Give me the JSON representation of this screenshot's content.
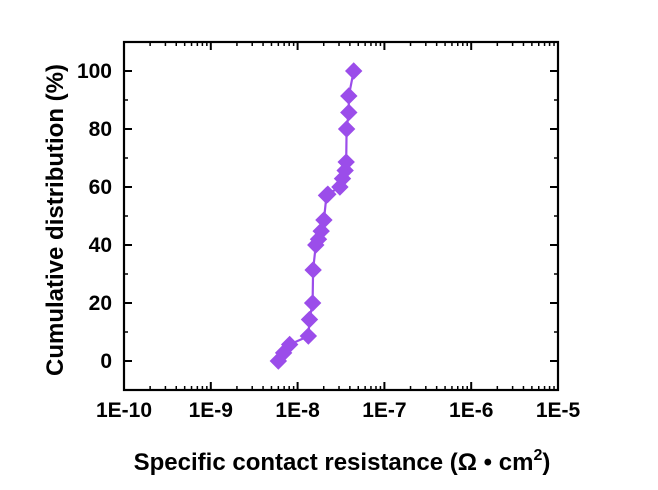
{
  "chart_data": {
    "type": "scatter",
    "title": "",
    "xlabel": "Specific contact resistance (Ω • cm",
    "xlabel_superscript": "2",
    "xlabel_close": ")",
    "ylabel": "Cumulative distribution (%)",
    "x_scale": "log",
    "xlim": [
      1e-10,
      1e-05
    ],
    "ylim": [
      -10,
      110
    ],
    "x_ticks": [
      1e-10,
      1e-09,
      1e-08,
      1e-07,
      1e-06,
      1e-05
    ],
    "x_tick_labels": [
      "1E-10",
      "1E-9",
      "1E-8",
      "1E-7",
      "1E-6",
      "1E-5"
    ],
    "y_ticks": [
      0,
      20,
      40,
      60,
      80,
      100
    ],
    "y_tick_labels": [
      "0",
      "20",
      "40",
      "60",
      "80",
      "100"
    ],
    "grid": false,
    "legend": "none",
    "series": [
      {
        "color": "#9b4dea",
        "marker": "diamond",
        "line": true,
        "x": [
          6e-09,
          6.9e-09,
          8.1e-09,
          1.33e-08,
          1.37e-08,
          1.49e-08,
          1.51e-08,
          1.62e-08,
          1.74e-08,
          1.87e-08,
          2.01e-08,
          2.15e-08,
          2.23e-08,
          3.07e-08,
          3.29e-08,
          3.53e-08,
          3.63e-08,
          3.67e-08,
          3.89e-08,
          3.89e-08,
          4.43e-08
        ],
        "y": [
          0,
          2.8,
          5.7,
          8.6,
          14.3,
          20.0,
          31.4,
          40.0,
          42.0,
          44.8,
          48.6,
          57.1,
          57.5,
          60.0,
          62.9,
          65.7,
          68.6,
          80.0,
          85.7,
          91.4,
          100
        ]
      }
    ]
  }
}
